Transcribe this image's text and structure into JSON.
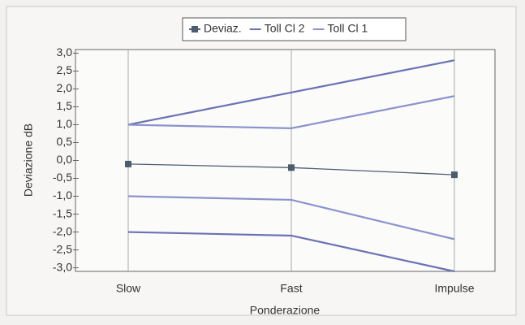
{
  "chart_data": {
    "type": "line",
    "categories": [
      "Slow",
      "Fast",
      "Impulse"
    ],
    "series": [
      {
        "name": "Deviaz.",
        "color": "#4e5d6e",
        "values": [
          -0.1,
          -0.2,
          -0.4
        ],
        "markers": true
      },
      {
        "name": "Toll Cl 2",
        "color": "#6b72b4",
        "upper": [
          1.0,
          1.9,
          2.8
        ],
        "lower": [
          -2.0,
          -2.1,
          -3.1
        ]
      },
      {
        "name": "Toll Cl 1",
        "color": "#8c92cc",
        "upper": [
          1.0,
          0.9,
          1.8
        ],
        "lower": [
          -1.0,
          -1.1,
          -2.2
        ]
      }
    ],
    "x_label": "Ponderazione",
    "y_label": "Deviazione dB",
    "ylim": [
      -3.1,
      3.1
    ],
    "yticks": [
      {
        "value": 3.0,
        "label": "3,0"
      },
      {
        "value": 2.5,
        "label": "2,5"
      },
      {
        "value": 2.0,
        "label": "2,0"
      },
      {
        "value": 1.5,
        "label": "1,5"
      },
      {
        "value": 1.0,
        "label": "1,0"
      },
      {
        "value": 0.5,
        "label": "0,5"
      },
      {
        "value": 0.0,
        "label": "0,0"
      },
      {
        "value": -0.5,
        "label": "-0,5"
      },
      {
        "value": -1.0,
        "label": "-1,0"
      },
      {
        "value": -1.5,
        "label": "-1,5"
      },
      {
        "value": -2.0,
        "label": "-2,0"
      },
      {
        "value": -2.5,
        "label": "-2,5"
      },
      {
        "value": -3.0,
        "label": "-3,0"
      }
    ],
    "legend": "top"
  }
}
